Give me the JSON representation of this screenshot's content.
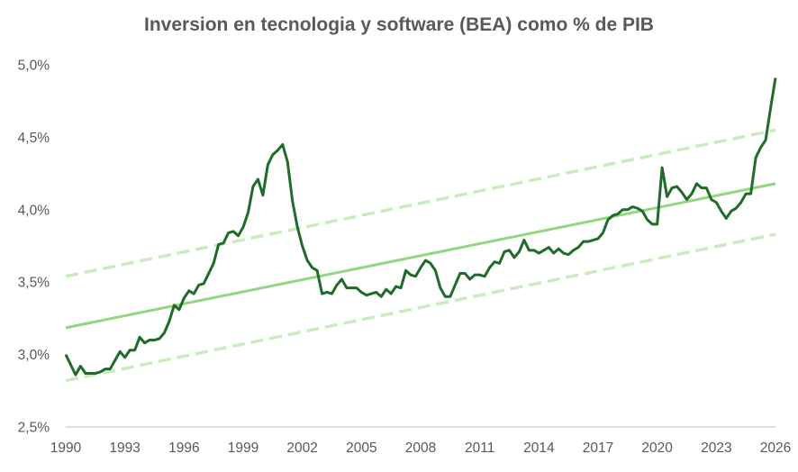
{
  "chart_data": {
    "type": "line",
    "title": "Inversion en tecnologia y software (BEA) como % de PIB",
    "xlabel": "",
    "ylabel": "",
    "xlim": [
      1990,
      2026
    ],
    "ylim": [
      2.5,
      5.0
    ],
    "x_ticks": [
      1990,
      1993,
      1996,
      1999,
      2002,
      2005,
      2008,
      2011,
      2014,
      2017,
      2020,
      2023,
      2026
    ],
    "x_tick_labels": [
      "1990",
      "1993",
      "1996",
      "1999",
      "2002",
      "2005",
      "2008",
      "2011",
      "2014",
      "2017",
      "2020",
      "2023",
      "2026"
    ],
    "y_ticks": [
      2.5,
      3.0,
      3.5,
      4.0,
      4.5,
      5.0
    ],
    "y_tick_labels": [
      "2,5%",
      "3,0%",
      "3,5%",
      "4,0%",
      "4,5%",
      "5,0%"
    ],
    "grid": false,
    "legend": "none",
    "colors": {
      "series": "#1e6b2a",
      "trend": "#92d77e",
      "band": "#c9ecbf",
      "text": "#595959",
      "axis": "#bfbfbf"
    },
    "series": [
      {
        "role": "data",
        "points": [
          [
            1990.0,
            3.0
          ],
          [
            1990.25,
            2.93
          ],
          [
            1990.5,
            2.86
          ],
          [
            1990.75,
            2.92
          ],
          [
            1991.0,
            2.87
          ],
          [
            1991.25,
            2.87
          ],
          [
            1991.5,
            2.87
          ],
          [
            1991.75,
            2.88
          ],
          [
            1992.0,
            2.9
          ],
          [
            1992.25,
            2.9
          ],
          [
            1992.5,
            2.96
          ],
          [
            1992.75,
            3.02
          ],
          [
            1993.0,
            2.98
          ],
          [
            1993.25,
            3.03
          ],
          [
            1993.5,
            3.03
          ],
          [
            1993.75,
            3.12
          ],
          [
            1994.0,
            3.08
          ],
          [
            1994.25,
            3.1
          ],
          [
            1994.5,
            3.1
          ],
          [
            1994.75,
            3.11
          ],
          [
            1995.0,
            3.15
          ],
          [
            1995.25,
            3.23
          ],
          [
            1995.5,
            3.34
          ],
          [
            1995.75,
            3.31
          ],
          [
            1996.0,
            3.39
          ],
          [
            1996.25,
            3.44
          ],
          [
            1996.5,
            3.42
          ],
          [
            1996.75,
            3.48
          ],
          [
            1997.0,
            3.49
          ],
          [
            1997.25,
            3.56
          ],
          [
            1997.5,
            3.63
          ],
          [
            1997.75,
            3.76
          ],
          [
            1998.0,
            3.77
          ],
          [
            1998.25,
            3.84
          ],
          [
            1998.5,
            3.85
          ],
          [
            1998.75,
            3.82
          ],
          [
            1999.0,
            3.88
          ],
          [
            1999.25,
            3.98
          ],
          [
            1999.5,
            4.16
          ],
          [
            1999.75,
            4.21
          ],
          [
            2000.0,
            4.1
          ],
          [
            2000.25,
            4.31
          ],
          [
            2000.5,
            4.38
          ],
          [
            2000.75,
            4.41
          ],
          [
            2001.0,
            4.45
          ],
          [
            2001.25,
            4.33
          ],
          [
            2001.5,
            4.06
          ],
          [
            2001.75,
            3.88
          ],
          [
            2002.0,
            3.75
          ],
          [
            2002.25,
            3.65
          ],
          [
            2002.5,
            3.6
          ],
          [
            2002.75,
            3.58
          ],
          [
            2003.0,
            3.42
          ],
          [
            2003.25,
            3.43
          ],
          [
            2003.5,
            3.42
          ],
          [
            2003.75,
            3.48
          ],
          [
            2004.0,
            3.52
          ],
          [
            2004.25,
            3.46
          ],
          [
            2004.5,
            3.46
          ],
          [
            2004.75,
            3.46
          ],
          [
            2005.0,
            3.43
          ],
          [
            2005.25,
            3.41
          ],
          [
            2005.5,
            3.42
          ],
          [
            2005.75,
            3.43
          ],
          [
            2006.0,
            3.4
          ],
          [
            2006.25,
            3.45
          ],
          [
            2006.5,
            3.42
          ],
          [
            2006.75,
            3.47
          ],
          [
            2007.0,
            3.46
          ],
          [
            2007.25,
            3.58
          ],
          [
            2007.5,
            3.55
          ],
          [
            2007.75,
            3.54
          ],
          [
            2008.0,
            3.6
          ],
          [
            2008.25,
            3.65
          ],
          [
            2008.5,
            3.63
          ],
          [
            2008.75,
            3.58
          ],
          [
            2009.0,
            3.46
          ],
          [
            2009.25,
            3.4
          ],
          [
            2009.5,
            3.4
          ],
          [
            2009.75,
            3.48
          ],
          [
            2010.0,
            3.56
          ],
          [
            2010.25,
            3.56
          ],
          [
            2010.5,
            3.52
          ],
          [
            2010.75,
            3.55
          ],
          [
            2011.0,
            3.55
          ],
          [
            2011.25,
            3.54
          ],
          [
            2011.5,
            3.6
          ],
          [
            2011.75,
            3.64
          ],
          [
            2012.0,
            3.63
          ],
          [
            2012.25,
            3.71
          ],
          [
            2012.5,
            3.72
          ],
          [
            2012.75,
            3.67
          ],
          [
            2013.0,
            3.71
          ],
          [
            2013.25,
            3.79
          ],
          [
            2013.5,
            3.72
          ],
          [
            2013.75,
            3.72
          ],
          [
            2014.0,
            3.7
          ],
          [
            2014.25,
            3.72
          ],
          [
            2014.5,
            3.74
          ],
          [
            2014.75,
            3.7
          ],
          [
            2015.0,
            3.73
          ],
          [
            2015.25,
            3.7
          ],
          [
            2015.5,
            3.69
          ],
          [
            2015.75,
            3.72
          ],
          [
            2016.0,
            3.74
          ],
          [
            2016.25,
            3.78
          ],
          [
            2016.5,
            3.78
          ],
          [
            2016.75,
            3.79
          ],
          [
            2017.0,
            3.8
          ],
          [
            2017.25,
            3.84
          ],
          [
            2017.5,
            3.93
          ],
          [
            2017.75,
            3.96
          ],
          [
            2018.0,
            3.97
          ],
          [
            2018.25,
            4.0
          ],
          [
            2018.5,
            4.0
          ],
          [
            2018.75,
            4.02
          ],
          [
            2019.0,
            4.01
          ],
          [
            2019.25,
            3.99
          ],
          [
            2019.5,
            3.93
          ],
          [
            2019.75,
            3.9
          ],
          [
            2020.0,
            3.9
          ],
          [
            2020.25,
            4.29
          ],
          [
            2020.5,
            4.09
          ],
          [
            2020.75,
            4.15
          ],
          [
            2021.0,
            4.16
          ],
          [
            2021.25,
            4.12
          ],
          [
            2021.5,
            4.07
          ],
          [
            2021.75,
            4.11
          ],
          [
            2022.0,
            4.18
          ],
          [
            2022.25,
            4.15
          ],
          [
            2022.5,
            4.15
          ],
          [
            2022.75,
            4.07
          ],
          [
            2023.0,
            4.05
          ],
          [
            2023.25,
            3.99
          ],
          [
            2023.5,
            3.94
          ],
          [
            2023.75,
            3.99
          ],
          [
            2024.0,
            4.01
          ],
          [
            2024.25,
            4.05
          ],
          [
            2024.5,
            4.11
          ],
          [
            2024.75,
            4.11
          ],
          [
            2025.0,
            4.36
          ],
          [
            2025.25,
            4.43
          ],
          [
            2025.5,
            4.48
          ],
          [
            2025.75,
            4.7
          ],
          [
            2026.0,
            4.91
          ]
        ]
      },
      {
        "role": "trend",
        "line_style": "solid",
        "points": [
          [
            1990.0,
            3.185
          ],
          [
            2026.0,
            4.18
          ]
        ]
      },
      {
        "role": "upper-band",
        "line_style": "dashed",
        "points": [
          [
            1990.0,
            3.54
          ],
          [
            2026.0,
            4.55
          ]
        ]
      },
      {
        "role": "lower-band",
        "line_style": "dashed",
        "points": [
          [
            1990.0,
            2.82
          ],
          [
            2026.0,
            3.83
          ]
        ]
      }
    ]
  }
}
